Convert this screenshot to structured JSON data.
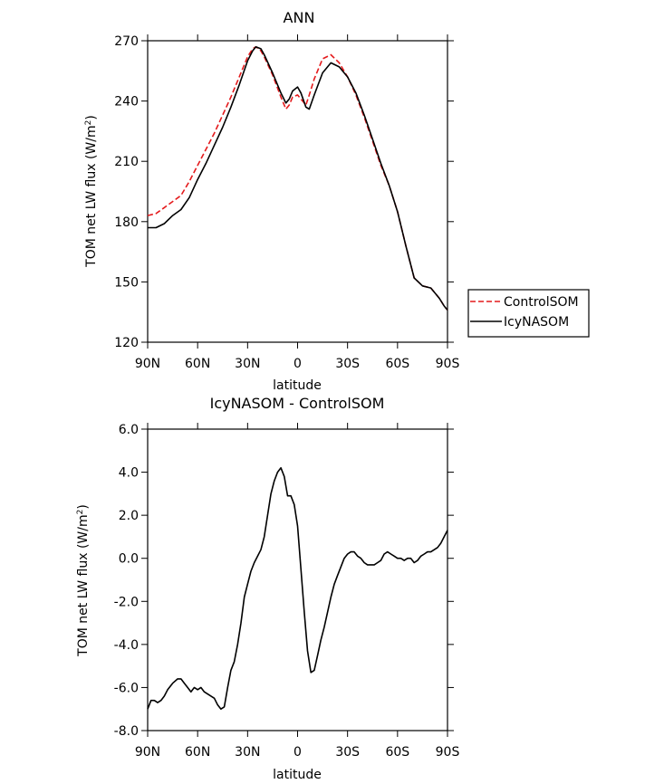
{
  "colors": {
    "control": "#e41a1c",
    "icy": "#000000",
    "axis": "#000000"
  },
  "chart_data": [
    {
      "type": "line",
      "title": "ANN",
      "xlabel": "latitude",
      "ylabel_main": "TOM net LW flux (W/m",
      "ylabel_sup": "2",
      "ylabel_close": ")",
      "xlim": [
        90,
        -90
      ],
      "ylim": [
        120,
        270
      ],
      "xticks": [
        90,
        60,
        30,
        0,
        -30,
        -60,
        -90
      ],
      "xtick_labels": [
        "90N",
        "60N",
        "30N",
        "0",
        "30S",
        "60S",
        "90S"
      ],
      "yticks": [
        120,
        150,
        180,
        210,
        240,
        270
      ],
      "ytick_labels": [
        "120",
        "150",
        "180",
        "210",
        "240",
        "270"
      ],
      "legend_position": "right",
      "series": [
        {
          "name": "ControlSOM",
          "style": "dashed",
          "color": "#e41a1c",
          "x": [
            90,
            85,
            80,
            75,
            70,
            65,
            60,
            55,
            50,
            45,
            40,
            35,
            30,
            27,
            25,
            22,
            20,
            15,
            10,
            7,
            5,
            3,
            0,
            -2,
            -5,
            -7,
            -10,
            -15,
            -20,
            -25,
            -30,
            -35,
            -40,
            -45,
            -50,
            -55,
            -60,
            -65,
            -70,
            -75,
            -80,
            -85,
            -88,
            -90
          ],
          "values": [
            183,
            184,
            187,
            190,
            193,
            200,
            208,
            216,
            224,
            233,
            242,
            252,
            262,
            266,
            267,
            265,
            262,
            253,
            242,
            236,
            238,
            242,
            243,
            241,
            238,
            243,
            251,
            261,
            263,
            259,
            252,
            243,
            232,
            220,
            208,
            198,
            185,
            168,
            152,
            148,
            147,
            142,
            138,
            136
          ]
        },
        {
          "name": "IcyNASOM",
          "style": "solid",
          "color": "#000000",
          "x": [
            90,
            85,
            80,
            75,
            70,
            65,
            60,
            55,
            50,
            45,
            40,
            35,
            30,
            27,
            25,
            22,
            20,
            15,
            10,
            7,
            5,
            3,
            0,
            -2,
            -5,
            -7,
            -10,
            -15,
            -20,
            -25,
            -30,
            -35,
            -40,
            -45,
            -50,
            -55,
            -60,
            -65,
            -70,
            -75,
            -80,
            -85,
            -88,
            -90
          ],
          "values": [
            177,
            177,
            179,
            183,
            186,
            192,
            201,
            209,
            218,
            227,
            237,
            248,
            260,
            265,
            267,
            266,
            263,
            254,
            244,
            239,
            241,
            245,
            247,
            244,
            237,
            236,
            243,
            254,
            259,
            257,
            252,
            244,
            233,
            221,
            209,
            198,
            185,
            168,
            152,
            148,
            147,
            142,
            138,
            136
          ]
        }
      ]
    },
    {
      "type": "line",
      "title": "IcyNASOM - ControlSOM",
      "xlabel": "latitude",
      "ylabel_main": "TOM net LW flux (W/m",
      "ylabel_sup": "2",
      "ylabel_close": ")",
      "xlim": [
        90,
        -90
      ],
      "ylim": [
        -8,
        6
      ],
      "xticks": [
        90,
        60,
        30,
        0,
        -30,
        -60,
        -90
      ],
      "xtick_labels": [
        "90N",
        "60N",
        "30N",
        "0",
        "30S",
        "60S",
        "90S"
      ],
      "yticks": [
        -8,
        -6,
        -4,
        -2,
        0,
        2,
        4,
        6
      ],
      "ytick_labels": [
        "-8.0",
        "-6.0",
        "-4.0",
        "-2.0",
        "0.0",
        "2.0",
        "4.0",
        "6.0"
      ],
      "series": [
        {
          "style": "solid",
          "color": "#000000",
          "x": [
            90,
            88,
            86,
            84,
            82,
            80,
            78,
            75,
            72,
            70,
            68,
            66,
            64,
            62,
            60,
            58,
            56,
            54,
            52,
            50,
            48,
            46,
            44,
            42,
            40,
            38,
            36,
            34,
            32,
            30,
            28,
            26,
            24,
            22,
            20,
            18,
            16,
            14,
            12,
            10,
            8,
            6,
            4,
            2,
            0,
            -2,
            -4,
            -6,
            -8,
            -10,
            -12,
            -14,
            -16,
            -18,
            -20,
            -22,
            -24,
            -26,
            -28,
            -30,
            -32,
            -34,
            -36,
            -38,
            -40,
            -42,
            -44,
            -46,
            -48,
            -50,
            -52,
            -54,
            -56,
            -58,
            -60,
            -62,
            -64,
            -66,
            -68,
            -70,
            -72,
            -74,
            -76,
            -78,
            -80,
            -82,
            -84,
            -86,
            -88,
            -90
          ],
          "values": [
            -7.0,
            -6.6,
            -6.6,
            -6.7,
            -6.6,
            -6.4,
            -6.1,
            -5.8,
            -5.6,
            -5.6,
            -5.8,
            -6.0,
            -6.2,
            -6.0,
            -6.1,
            -6.0,
            -6.2,
            -6.3,
            -6.4,
            -6.5,
            -6.8,
            -7.0,
            -6.9,
            -6.0,
            -5.2,
            -4.8,
            -4.0,
            -3.0,
            -1.8,
            -1.2,
            -0.6,
            -0.2,
            0.1,
            0.4,
            1.0,
            2.0,
            3.0,
            3.6,
            4.0,
            4.2,
            3.8,
            2.9,
            2.9,
            2.5,
            1.5,
            -0.5,
            -2.5,
            -4.3,
            -5.3,
            -5.2,
            -4.5,
            -3.8,
            -3.2,
            -2.5,
            -1.8,
            -1.2,
            -0.8,
            -0.4,
            0.0,
            0.2,
            0.3,
            0.3,
            0.1,
            0.0,
            -0.2,
            -0.3,
            -0.3,
            -0.3,
            -0.2,
            -0.1,
            0.2,
            0.3,
            0.2,
            0.1,
            0.0,
            0.0,
            -0.1,
            0.0,
            0.0,
            -0.2,
            -0.1,
            0.1,
            0.2,
            0.3,
            0.3,
            0.4,
            0.5,
            0.7,
            1.0,
            1.3
          ]
        }
      ]
    }
  ]
}
